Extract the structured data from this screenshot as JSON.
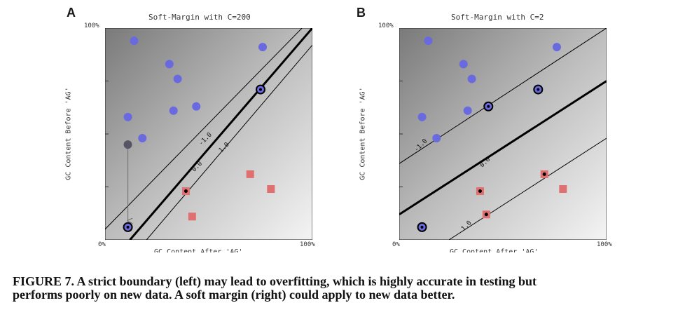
{
  "caption": {
    "line1": "FIGURE 7. A strict boundary (left) may lead to overfitting, which is highly accurate in testing but",
    "line2": "performs poorly on new data. A soft margin (right) could apply to new data better."
  },
  "colors": {
    "blue_point": "#6a6ae0",
    "red_point": "#e07070",
    "dark_point": "#555566",
    "line": "#000000"
  },
  "chart_data": [
    {
      "panel": "A",
      "type": "scatter",
      "title": "Soft-Margin with C=200",
      "xlabel": "GC Content After 'AG'",
      "ylabel": "GC Content Before 'AG'",
      "x_ticks": [
        "0%",
        "100%"
      ],
      "y_ticks": [
        "0%",
        "100%"
      ],
      "xlim": [
        0,
        100
      ],
      "ylim": [
        0,
        100
      ],
      "series": [
        {
          "class": "blue",
          "points": [
            [
              14,
              94
            ],
            [
              31,
              83
            ],
            [
              35,
              76
            ],
            [
              33,
              61
            ],
            [
              44,
              63
            ],
            [
              11,
              58
            ],
            [
              18,
              48
            ],
            [
              75,
              71
            ],
            [
              76,
              91
            ],
            [
              11,
              6
            ]
          ],
          "support": [
            [
              75,
              71
            ],
            [
              11,
              6
            ]
          ]
        },
        {
          "class": "red",
          "points": [
            [
              39,
              23
            ],
            [
              42,
              11
            ],
            [
              70,
              31
            ],
            [
              80,
              24
            ]
          ],
          "support": [
            [
              39,
              23
            ]
          ]
        },
        {
          "class": "moved",
          "points": [
            [
              11,
              45
            ]
          ]
        }
      ],
      "arrow": {
        "from": [
          11,
          43
        ],
        "to": [
          11,
          9
        ]
      },
      "lines": [
        {
          "label": "-1.0",
          "points": [
            [
              -5,
              0
            ],
            [
              100,
              105
            ]
          ]
        },
        {
          "label": "0.0",
          "points": [
            [
              12,
              0
            ],
            [
              100,
              100
            ]
          ],
          "bold": true
        },
        {
          "label": "1.0",
          "points": [
            [
              20,
              0
            ],
            [
              100,
              92
            ]
          ]
        }
      ],
      "contour_labels": [
        {
          "text": "-1.0",
          "at": [
            49,
            47
          ]
        },
        {
          "text": "0.0",
          "at": [
            45,
            34
          ]
        },
        {
          "text": "1.0",
          "at": [
            58,
            43
          ]
        }
      ]
    },
    {
      "panel": "B",
      "type": "scatter",
      "title": "Soft-Margin with C=2",
      "xlabel": "GC Content After 'AG'",
      "ylabel": "GC Content Before 'AG'",
      "x_ticks": [
        "0%",
        "100%"
      ],
      "y_ticks": [
        "0%",
        "100%"
      ],
      "xlim": [
        0,
        100
      ],
      "ylim": [
        0,
        100
      ],
      "series": [
        {
          "class": "blue",
          "points": [
            [
              14,
              94
            ],
            [
              31,
              83
            ],
            [
              35,
              76
            ],
            [
              33,
              61
            ],
            [
              43,
              63
            ],
            [
              11,
              58
            ],
            [
              18,
              48
            ],
            [
              67,
              71
            ],
            [
              76,
              91
            ],
            [
              11,
              6
            ]
          ],
          "support": [
            [
              43,
              63
            ],
            [
              67,
              71
            ],
            [
              11,
              6
            ]
          ]
        },
        {
          "class": "red",
          "points": [
            [
              39,
              23
            ],
            [
              42,
              12
            ],
            [
              70,
              31
            ],
            [
              79,
              24
            ]
          ],
          "support": [
            [
              39,
              23
            ],
            [
              42,
              12
            ],
            [
              70,
              31
            ]
          ]
        }
      ],
      "lines": [
        {
          "label": "-1.0",
          "points": [
            [
              0,
              36
            ],
            [
              100,
              100
            ]
          ]
        },
        {
          "label": "0.0",
          "points": [
            [
              0,
              12
            ],
            [
              100,
              75
            ]
          ],
          "bold": true
        },
        {
          "label": "1.0",
          "points": [
            [
              24,
              0
            ],
            [
              100,
              48
            ]
          ]
        }
      ],
      "contour_labels": [
        {
          "text": "-1.0",
          "at": [
            11,
            44
          ]
        },
        {
          "text": "0.0",
          "at": [
            42,
            36
          ]
        },
        {
          "text": "1.0",
          "at": [
            33,
            6
          ]
        }
      ]
    }
  ]
}
